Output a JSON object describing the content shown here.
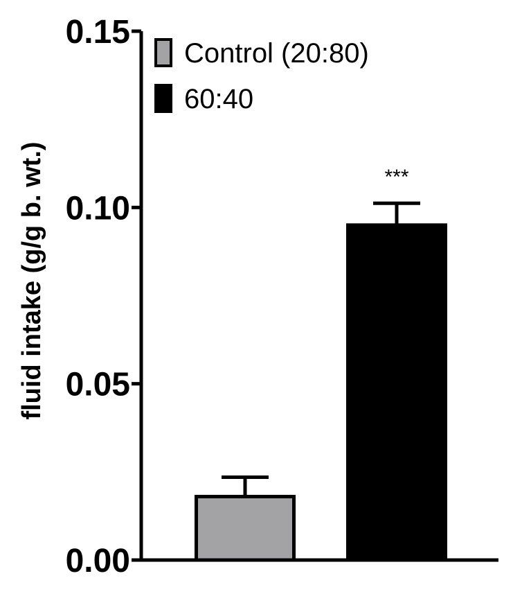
{
  "chart_data": {
    "type": "bar",
    "title": "",
    "xlabel": "",
    "ylabel": "fluid intake (g/g b. wt.)",
    "ylim": [
      0,
      0.15
    ],
    "yticks": [
      0.0,
      0.05,
      0.1,
      0.15
    ],
    "ytick_labels": [
      "0.00",
      "0.05",
      "0.10",
      "0.15"
    ],
    "categories": [
      "Control (20:80)",
      "60:40"
    ],
    "series": [
      {
        "name": "Control (20:80)",
        "color": "#a3a3a6",
        "value": 0.018,
        "error": 0.0055,
        "annotation": ""
      },
      {
        "name": "60:40",
        "color": "#000000",
        "value": 0.095,
        "error": 0.0062,
        "annotation": "***"
      }
    ],
    "grid": false,
    "legend_position": "top-left"
  }
}
